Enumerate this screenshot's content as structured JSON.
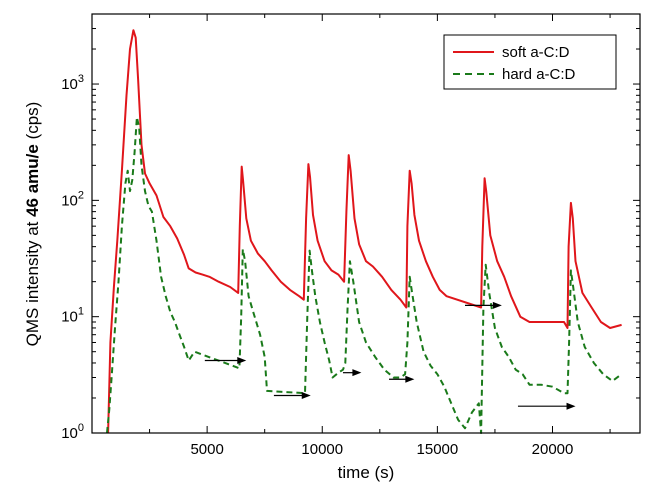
{
  "chart_data": {
    "type": "line",
    "xlabel": "time (s)",
    "ylabel_parts": [
      "QMS intensity at ",
      "46 amu/e",
      " (cps)"
    ],
    "xlim": [
      0,
      23800
    ],
    "ylim": [
      1,
      4000
    ],
    "yscale": "log",
    "grid": false,
    "legend_position": "top-right",
    "x_ticks": [
      {
        "value": 5000,
        "label": "5000"
      },
      {
        "value": 10000,
        "label": "10000"
      },
      {
        "value": 15000,
        "label": "15000"
      },
      {
        "value": 20000,
        "label": "20000"
      }
    ],
    "y_ticks": [
      {
        "value": 1,
        "base": "10",
        "exp": "0"
      },
      {
        "value": 10,
        "base": "10",
        "exp": "1"
      },
      {
        "value": 100,
        "base": "10",
        "exp": "2"
      },
      {
        "value": 1000,
        "base": "10",
        "exp": "3"
      }
    ],
    "series": [
      {
        "name": "soft a-C:D",
        "color": "#e0161b",
        "dash": "solid",
        "points": [
          [
            700,
            1.0
          ],
          [
            800,
            6
          ],
          [
            950,
            18
          ],
          [
            1100,
            45
          ],
          [
            1300,
            180
          ],
          [
            1500,
            800
          ],
          [
            1650,
            2000
          ],
          [
            1800,
            2900
          ],
          [
            1900,
            2500
          ],
          [
            2000,
            1100
          ],
          [
            2150,
            300
          ],
          [
            2300,
            170
          ],
          [
            2500,
            140
          ],
          [
            2800,
            110
          ],
          [
            3100,
            72
          ],
          [
            3400,
            60
          ],
          [
            3700,
            47
          ],
          [
            4000,
            34
          ],
          [
            4200,
            26
          ],
          [
            4500,
            24
          ],
          [
            4800,
            23
          ],
          [
            5100,
            22
          ],
          [
            5500,
            20
          ],
          [
            6000,
            18
          ],
          [
            6350,
            16
          ],
          [
            6420,
            60
          ],
          [
            6500,
            195
          ],
          [
            6560,
            150
          ],
          [
            6700,
            70
          ],
          [
            6900,
            45
          ],
          [
            7200,
            35
          ],
          [
            7500,
            30
          ],
          [
            7800,
            25
          ],
          [
            8200,
            20
          ],
          [
            8600,
            17
          ],
          [
            9000,
            15
          ],
          [
            9200,
            14
          ],
          [
            9300,
            70
          ],
          [
            9400,
            205
          ],
          [
            9470,
            160
          ],
          [
            9600,
            75
          ],
          [
            9800,
            45
          ],
          [
            10100,
            30
          ],
          [
            10400,
            25
          ],
          [
            10700,
            23
          ],
          [
            10950,
            20
          ],
          [
            11050,
            80
          ],
          [
            11150,
            245
          ],
          [
            11230,
            180
          ],
          [
            11400,
            70
          ],
          [
            11600,
            42
          ],
          [
            11900,
            30
          ],
          [
            12200,
            27
          ],
          [
            12600,
            22
          ],
          [
            13000,
            17
          ],
          [
            13400,
            14
          ],
          [
            13650,
            12
          ],
          [
            13700,
            60
          ],
          [
            13800,
            180
          ],
          [
            13880,
            140
          ],
          [
            14000,
            75
          ],
          [
            14200,
            45
          ],
          [
            14500,
            30
          ],
          [
            14800,
            22
          ],
          [
            15100,
            17
          ],
          [
            15400,
            15
          ],
          [
            16900,
            12
          ],
          [
            16950,
            40
          ],
          [
            17050,
            155
          ],
          [
            17120,
            120
          ],
          [
            17300,
            50
          ],
          [
            17600,
            30
          ],
          [
            17900,
            22
          ],
          [
            18200,
            15
          ],
          [
            18600,
            10
          ],
          [
            19000,
            9
          ],
          [
            19500,
            9
          ],
          [
            20000,
            9
          ],
          [
            20500,
            9
          ],
          [
            20650,
            8
          ],
          [
            20700,
            40
          ],
          [
            20800,
            95
          ],
          [
            20880,
            70
          ],
          [
            21000,
            30
          ],
          [
            21300,
            16
          ],
          [
            21700,
            12
          ],
          [
            22100,
            9
          ],
          [
            22500,
            8
          ],
          [
            23000,
            8.5
          ]
        ]
      },
      {
        "name": "hard a-C:D",
        "color": "#1a7a1a",
        "dash": "dashed",
        "points": [
          [
            650,
            1.0
          ],
          [
            750,
            1.6
          ],
          [
            850,
            3
          ],
          [
            1000,
            8
          ],
          [
            1150,
            20
          ],
          [
            1300,
            60
          ],
          [
            1450,
            140
          ],
          [
            1550,
            180
          ],
          [
            1650,
            120
          ],
          [
            1750,
            150
          ],
          [
            1850,
            260
          ],
          [
            1950,
            520
          ],
          [
            2050,
            420
          ],
          [
            2150,
            200
          ],
          [
            2300,
            120
          ],
          [
            2450,
            90
          ],
          [
            2600,
            80
          ],
          [
            2800,
            45
          ],
          [
            3000,
            22
          ],
          [
            3200,
            15
          ],
          [
            3400,
            11
          ],
          [
            3600,
            9
          ],
          [
            3800,
            7
          ],
          [
            4000,
            5.5
          ],
          [
            4200,
            4.2
          ],
          [
            4450,
            5.0
          ],
          [
            6400,
            3.6
          ],
          [
            6480,
            10
          ],
          [
            6550,
            38
          ],
          [
            6650,
            30
          ],
          [
            6800,
            15
          ],
          [
            7000,
            11
          ],
          [
            7300,
            7
          ],
          [
            7500,
            4.5
          ],
          [
            7600,
            2.3
          ],
          [
            9250,
            2.2
          ],
          [
            9350,
            10
          ],
          [
            9450,
            37
          ],
          [
            9550,
            25
          ],
          [
            9700,
            15
          ],
          [
            9900,
            9
          ],
          [
            10100,
            6
          ],
          [
            10300,
            4.2
          ],
          [
            10450,
            3.0
          ],
          [
            10700,
            3.3
          ],
          [
            10900,
            3.5
          ],
          [
            11000,
            4
          ],
          [
            11100,
            12
          ],
          [
            11200,
            30
          ],
          [
            11350,
            20
          ],
          [
            11600,
            9
          ],
          [
            11900,
            6
          ],
          [
            12300,
            4.5
          ],
          [
            12700,
            3.5
          ],
          [
            13100,
            3.0
          ],
          [
            13400,
            3.0
          ],
          [
            13600,
            3.2
          ],
          [
            13700,
            6
          ],
          [
            13800,
            22
          ],
          [
            13900,
            16
          ],
          [
            14100,
            9
          ],
          [
            14400,
            5
          ],
          [
            14700,
            3.8
          ],
          [
            15000,
            3.2
          ],
          [
            15300,
            2.5
          ],
          [
            15600,
            1.8
          ],
          [
            15900,
            1.3
          ],
          [
            16200,
            1.1
          ],
          [
            16500,
            1.5
          ],
          [
            16800,
            1.8
          ],
          [
            16900,
            1.0
          ],
          [
            17000,
            12
          ],
          [
            17100,
            28
          ],
          [
            17250,
            16
          ],
          [
            17500,
            8
          ],
          [
            17800,
            5.5
          ],
          [
            18100,
            4.5
          ],
          [
            18400,
            3.5
          ],
          [
            18700,
            3.2
          ],
          [
            19000,
            2.6
          ],
          [
            19500,
            2.6
          ],
          [
            20000,
            2.5
          ],
          [
            20500,
            2.2
          ],
          [
            20650,
            2.2
          ],
          [
            20720,
            6
          ],
          [
            20800,
            25
          ],
          [
            20900,
            18
          ],
          [
            21100,
            9
          ],
          [
            21400,
            5.5
          ],
          [
            21800,
            4.0
          ],
          [
            22200,
            3.2
          ],
          [
            22600,
            2.8
          ],
          [
            23000,
            3.2
          ]
        ]
      }
    ],
    "arrows": [
      {
        "x1": 4900,
        "x2": 6700,
        "y": 4.2
      },
      {
        "x1": 7900,
        "x2": 9500,
        "y": 2.1
      },
      {
        "x1": 10900,
        "x2": 11700,
        "y": 3.3
      },
      {
        "x1": 12900,
        "x2": 14000,
        "y": 2.9
      },
      {
        "x1": 16200,
        "x2": 17800,
        "y": 12.5
      },
      {
        "x1": 18500,
        "x2": 21000,
        "y": 1.7
      }
    ]
  }
}
